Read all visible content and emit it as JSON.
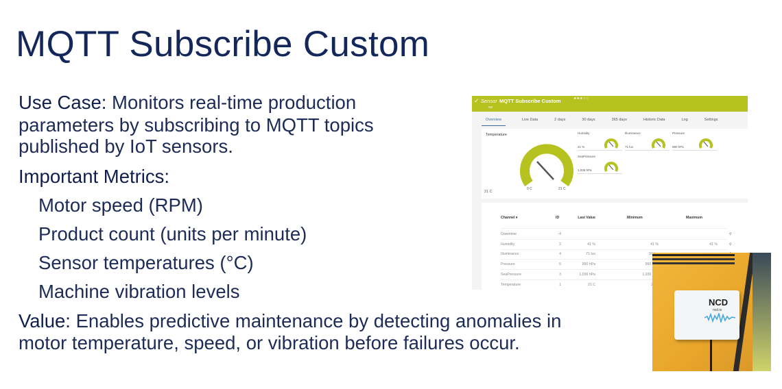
{
  "slide": {
    "title": "MQTT Subscribe Custom",
    "use_case_label": "Use Case:",
    "use_case_lines": [
      " Monitors real-time production",
      "parameters by subscribing to MQTT topics",
      "published by IoT sensors."
    ],
    "metrics_label": "Important Metrics:",
    "metrics": [
      "Motor speed (RPM)",
      "Product count (units per minute)",
      "Sensor temperatures (°C)",
      "Machine vibration levels"
    ],
    "value_label": "Value:",
    "value_lines": [
      " Enables predictive maintenance by detecting anomalies in",
      "motor temperature, speed, or vibration before failures occur."
    ]
  },
  "screenshot": {
    "header": {
      "prefix": "Sensor",
      "name": "MQTT Subscribe Custom",
      "status": "OK",
      "stars": 3,
      "color": "#b6c21f"
    },
    "tabs": [
      "Overview",
      "Live Data",
      "2  days",
      "30  days",
      "365  days",
      "Historic Data",
      "Log",
      "Settings"
    ],
    "gauges": {
      "main": {
        "label": "Temperature",
        "value": "21 C",
        "min": "0 C",
        "max": "21 C"
      },
      "small": [
        {
          "label": "Humidity",
          "value": "41 %"
        },
        {
          "label": "Illuminance",
          "value": "71 lux"
        },
        {
          "label": "Pressure",
          "value": "990 hPa"
        },
        {
          "label": "SeaPressure",
          "value": "1,036 hPa"
        }
      ]
    },
    "table": {
      "headers": [
        "Channel ▾",
        "ID",
        "Last Value",
        "Minimum",
        "Maximum"
      ],
      "rows": [
        [
          "Downtime",
          "-4",
          "",
          "",
          ""
        ],
        [
          "Humidity",
          "2",
          "41 %",
          "41 %",
          "41 %"
        ],
        [
          "Illuminance",
          "4",
          "71 lux",
          "50 lux",
          ""
        ],
        [
          "Pressure",
          "5",
          "990 hPa",
          "990 hPa",
          ""
        ],
        [
          "SeaPressure",
          "3",
          "1,036 hPa",
          "1,036 hPa",
          ""
        ],
        [
          "Temperature",
          "1",
          "21 C",
          "21 C",
          ""
        ]
      ]
    }
  },
  "photo": {
    "logo": "NCD",
    "site": "ncd.io"
  }
}
